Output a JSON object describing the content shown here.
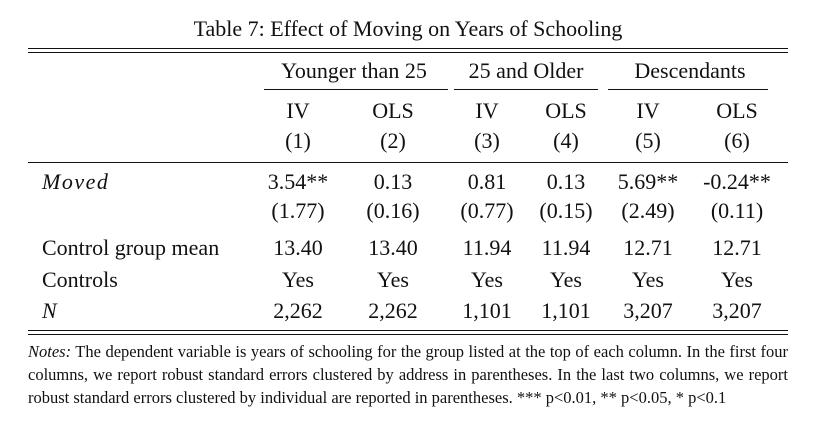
{
  "caption": "Table 7: Effect of Moving on Years of Schooling",
  "groups": [
    "Younger than 25",
    "25 and Older",
    "Descendants"
  ],
  "methods": [
    "IV",
    "OLS",
    "IV",
    "OLS",
    "IV",
    "OLS"
  ],
  "col_numbers": [
    "(1)",
    "(2)",
    "(3)",
    "(4)",
    "(5)",
    "(6)"
  ],
  "rows": {
    "moved": {
      "label": "Moved",
      "coef": [
        "3.54**",
        "0.13",
        "0.81",
        "0.13",
        "5.69**",
        "-0.24**"
      ],
      "se": [
        "(1.77)",
        "(0.16)",
        "(0.77)",
        "(0.15)",
        "(2.49)",
        "(0.11)"
      ]
    },
    "control_mean": {
      "label": "Control group mean",
      "values": [
        "13.40",
        "13.40",
        "11.94",
        "11.94",
        "12.71",
        "12.71"
      ]
    },
    "controls": {
      "label": "Controls",
      "values": [
        "Yes",
        "Yes",
        "Yes",
        "Yes",
        "Yes",
        "Yes"
      ]
    },
    "n": {
      "label": "N",
      "values": [
        "2,262",
        "2,262",
        "1,101",
        "1,101",
        "3,207",
        "3,207"
      ]
    }
  },
  "notes": {
    "lead": "Notes:",
    "text": " The dependent variable is years of schooling for the group listed at the top of each column. In the first four columns, we report robust standard errors clustered by address in parentheses. In the last two columns, we report robust standard errors clustered by individual are reported in parentheses. *** p<0.01, ** p<0.05, * p<0.1"
  }
}
